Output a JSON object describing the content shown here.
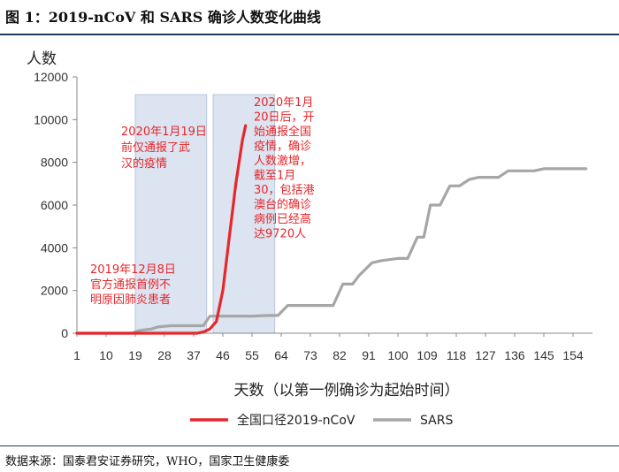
{
  "figure_title": "图 1：2019-nCoV 和 SARS 确诊人数变化曲线",
  "source": "数据来源：国泰君安证券研究，WHO，国家卫生健康委",
  "chart_data": {
    "type": "line",
    "ylabel": "人数",
    "xlabel": "天数（以第一例确诊为起始时间）",
    "ylim": [
      0,
      12000
    ],
    "yticks": [
      0,
      2000,
      4000,
      6000,
      8000,
      10000,
      12000
    ],
    "xlim": [
      1,
      160
    ],
    "xticks": [
      1,
      10,
      19,
      28,
      37,
      46,
      55,
      64,
      73,
      82,
      91,
      100,
      109,
      118,
      127,
      136,
      145,
      154
    ],
    "grid": false,
    "legend": "bottom",
    "colors": {
      "ncov": "#e8262b",
      "sars": "#a6a6a6",
      "highlight": "#dbe4f0"
    },
    "series": [
      {
        "name": "全国口径2019-nCoV",
        "x": [
          1,
          10,
          20,
          30,
          38,
          40,
          42,
          44,
          46,
          48,
          50,
          52,
          53
        ],
        "y": [
          0,
          0,
          0,
          0,
          0,
          60,
          200,
          550,
          2000,
          4500,
          7000,
          9000,
          9720
        ]
      },
      {
        "name": "SARS",
        "x": [
          1,
          10,
          18,
          20,
          24,
          26,
          30,
          40,
          42,
          44,
          55,
          60,
          63,
          66,
          70,
          75,
          80,
          83,
          86,
          88,
          92,
          95,
          100,
          103,
          106,
          108,
          110,
          113,
          116,
          119,
          122,
          125,
          128,
          131,
          134,
          137,
          142,
          145,
          150,
          158
        ],
        "y": [
          0,
          0,
          0,
          120,
          200,
          300,
          350,
          350,
          800,
          800,
          800,
          830,
          830,
          1300,
          1300,
          1300,
          1300,
          2300,
          2300,
          2700,
          3300,
          3400,
          3500,
          3500,
          4500,
          4500,
          6000,
          6000,
          6900,
          6900,
          7200,
          7300,
          7300,
          7300,
          7600,
          7600,
          7600,
          7700,
          7700,
          7700
        ]
      }
    ],
    "highlights": [
      {
        "x_range": [
          19,
          41
        ]
      },
      {
        "x_range": [
          43,
          62
        ]
      }
    ],
    "annotations": [
      {
        "lines": [
          "2020年1月19日",
          "前仅通报了武",
          "汉的疫情"
        ]
      },
      {
        "lines": [
          "2020年1月",
          "20日后，开",
          "始通报全国",
          "疫情，确诊",
          "人数激增，",
          "截至1月",
          "30，包括港",
          "澳台的确诊",
          "病例已经高",
          "达9720人"
        ]
      },
      {
        "lines": [
          "2019年12月8日",
          "官方通报首例不",
          "明原因肺炎患者"
        ]
      }
    ]
  }
}
